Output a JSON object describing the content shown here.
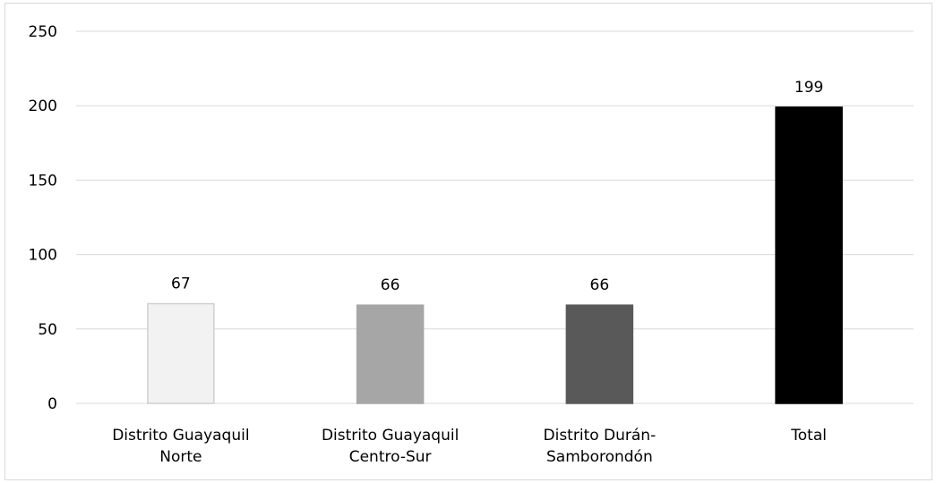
{
  "chart_data": {
    "type": "bar",
    "categories": [
      [
        "Distrito Guayaquil",
        "Norte"
      ],
      [
        "Distrito Guayaquil",
        "Centro-Sur"
      ],
      [
        "Distrito Durán-",
        "Samborondón"
      ],
      [
        "Total"
      ]
    ],
    "values": [
      67,
      66,
      66,
      199
    ],
    "data_labels": [
      "67",
      "66",
      "66",
      "199"
    ],
    "yticks": [
      "0",
      "50",
      "100",
      "150",
      "200",
      "250"
    ],
    "ylim": [
      0,
      250
    ],
    "grid": true,
    "legend": false,
    "bar_colors": [
      "#f2f2f2",
      "#a6a6a6",
      "#595959",
      "#000000"
    ],
    "bar_border_colors": [
      "#d0d0d0",
      "#a6a6a6",
      "#595959",
      "#000000"
    ],
    "gridline_color": "#d9d9d9"
  }
}
